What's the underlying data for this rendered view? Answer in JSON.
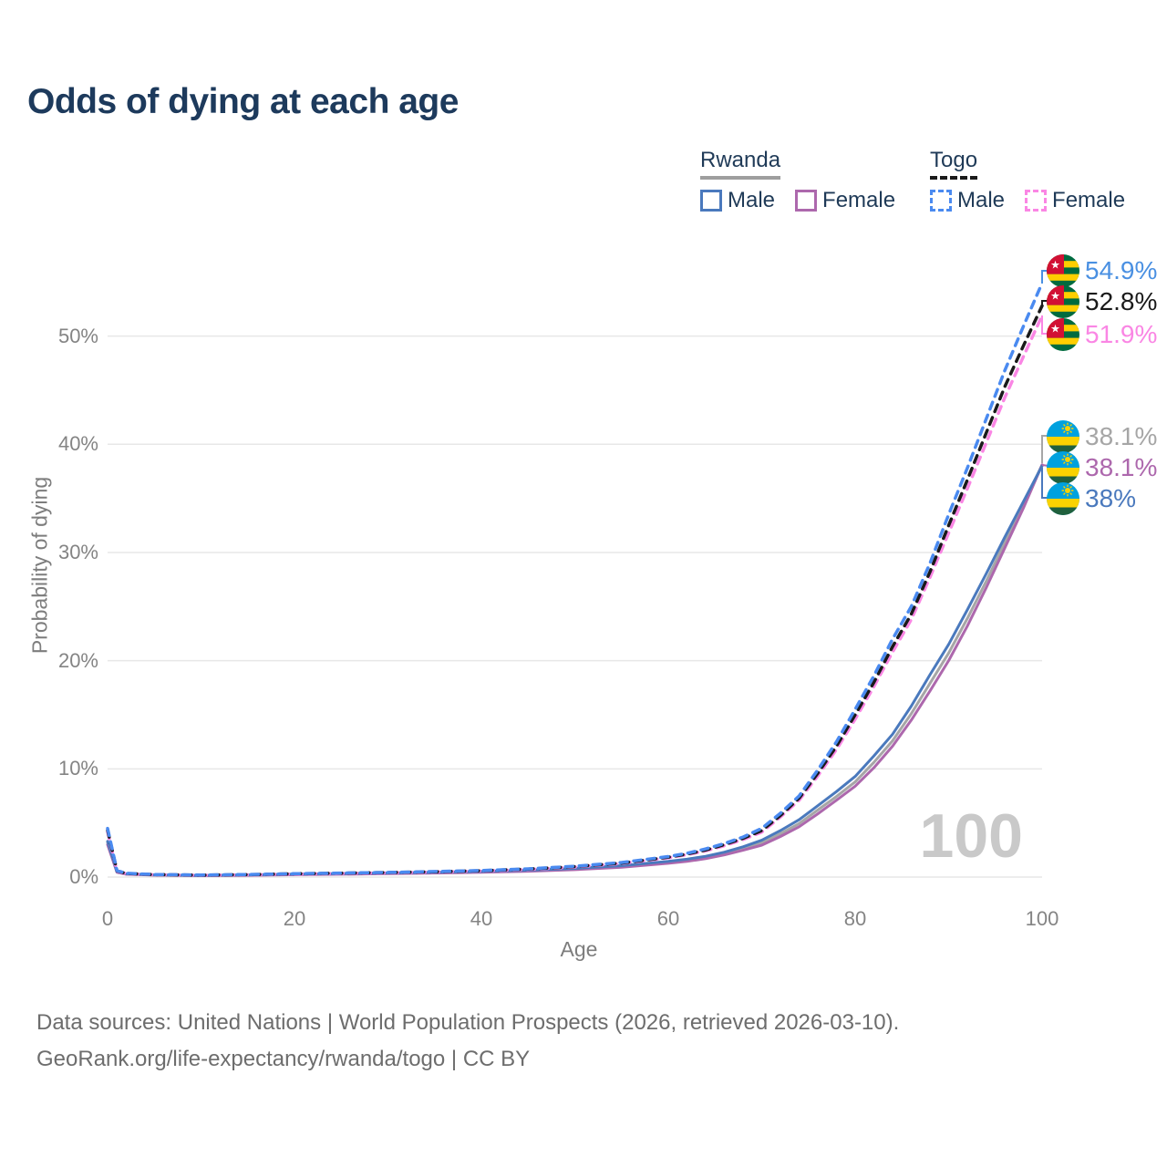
{
  "title": "Odds of dying at each age",
  "watermark": "100",
  "legend": {
    "groups": [
      {
        "name": "Rwanda",
        "underline_color": "#9e9e9e",
        "underline_style": "solid",
        "items": [
          {
            "label": "Male",
            "color": "#4a79bd",
            "style": "solid"
          },
          {
            "label": "Female",
            "color": "#ad68ad",
            "style": "solid"
          }
        ]
      },
      {
        "name": "Togo",
        "underline_color": "#1a1a1a",
        "underline_style": "dashed",
        "items": [
          {
            "label": "Male",
            "color": "#4a8af0",
            "style": "dashed"
          },
          {
            "label": "Female",
            "color": "#fa86e4",
            "style": "dashed"
          }
        ]
      }
    ]
  },
  "axes": {
    "y_label": "Probability of dying",
    "x_label": "Age",
    "y_ticks": [
      "0%",
      "10%",
      "20%",
      "30%",
      "40%",
      "50%"
    ],
    "x_ticks": [
      "0",
      "20",
      "40",
      "60",
      "80",
      "100"
    ]
  },
  "chart_data": {
    "type": "line",
    "title": "Odds of dying at each age",
    "xlabel": "Age",
    "ylabel": "Probability of dying",
    "x_range": [
      0,
      100
    ],
    "y_range_pct": [
      0,
      57
    ],
    "y_grid_pct": [
      0,
      10,
      20,
      30,
      40,
      50
    ],
    "grid": "horizontal-only",
    "ages": [
      0,
      1,
      2,
      5,
      10,
      15,
      20,
      25,
      30,
      35,
      40,
      45,
      50,
      55,
      60,
      62,
      64,
      66,
      68,
      70,
      72,
      74,
      76,
      78,
      80,
      82,
      84,
      86,
      88,
      90,
      92,
      94,
      96,
      98,
      100
    ],
    "series": [
      {
        "name": "Rwanda (both sexes)",
        "country": "Rwanda",
        "color": "#a6a6a6",
        "dash": false,
        "values": [
          3.2,
          0.47,
          0.28,
          0.19,
          0.14,
          0.18,
          0.25,
          0.3,
          0.35,
          0.41,
          0.48,
          0.58,
          0.74,
          0.98,
          1.36,
          1.55,
          1.8,
          2.17,
          2.64,
          3.15,
          4.0,
          4.95,
          6.2,
          7.45,
          8.8,
          10.6,
          12.6,
          15.1,
          17.9,
          20.7,
          23.9,
          27.3,
          30.9,
          34.4,
          38.1
        ]
      },
      {
        "name": "Rwanda Female",
        "country": "Rwanda",
        "color": "#ad68ad",
        "dash": false,
        "values": [
          3.0,
          0.44,
          0.26,
          0.18,
          0.13,
          0.16,
          0.22,
          0.26,
          0.31,
          0.37,
          0.44,
          0.54,
          0.68,
          0.9,
          1.27,
          1.45,
          1.7,
          2.05,
          2.48,
          2.95,
          3.75,
          4.65,
          5.85,
          7.1,
          8.4,
          10.1,
          12.1,
          14.5,
          17.2,
          20.0,
          23.2,
          26.7,
          30.4,
          34.1,
          38.1
        ]
      },
      {
        "name": "Rwanda Male",
        "country": "Rwanda",
        "color": "#4a79bd",
        "dash": false,
        "values": [
          3.3,
          0.5,
          0.3,
          0.2,
          0.15,
          0.2,
          0.28,
          0.33,
          0.38,
          0.44,
          0.52,
          0.63,
          0.8,
          1.05,
          1.45,
          1.65,
          1.92,
          2.3,
          2.8,
          3.4,
          4.3,
          5.3,
          6.6,
          7.9,
          9.3,
          11.2,
          13.2,
          15.8,
          18.7,
          21.5,
          24.7,
          28.0,
          31.4,
          34.7,
          38.0
        ]
      },
      {
        "name": "Togo Female",
        "country": "Togo",
        "color": "#fa86e4",
        "dash": true,
        "values": [
          4.2,
          0.54,
          0.31,
          0.22,
          0.17,
          0.21,
          0.28,
          0.34,
          0.4,
          0.47,
          0.57,
          0.71,
          0.93,
          1.26,
          1.78,
          2.07,
          2.43,
          2.9,
          3.47,
          4.15,
          5.55,
          7.1,
          9.35,
          11.8,
          14.6,
          17.6,
          20.8,
          23.8,
          27.7,
          31.8,
          35.9,
          40.1,
          44.3,
          48.1,
          51.9
        ]
      },
      {
        "name": "Togo (both sexes)",
        "country": "Togo",
        "color": "#1a1a1a",
        "dash": true,
        "values": [
          4.35,
          0.57,
          0.33,
          0.23,
          0.18,
          0.23,
          0.3,
          0.36,
          0.42,
          0.49,
          0.59,
          0.74,
          0.97,
          1.3,
          1.84,
          2.13,
          2.5,
          3.0,
          3.58,
          4.3,
          5.7,
          7.3,
          9.6,
          12.1,
          15.0,
          18.0,
          21.3,
          24.3,
          28.2,
          32.5,
          36.7,
          41.0,
          45.3,
          49.1,
          52.8
        ]
      },
      {
        "name": "Togo Male",
        "country": "Togo",
        "color": "#4a8af0",
        "dash": true,
        "values": [
          4.5,
          0.6,
          0.35,
          0.24,
          0.19,
          0.24,
          0.31,
          0.37,
          0.43,
          0.51,
          0.61,
          0.76,
          1.0,
          1.35,
          1.9,
          2.2,
          2.6,
          3.1,
          3.7,
          4.5,
          5.9,
          7.5,
          9.9,
          12.5,
          15.5,
          18.6,
          22.0,
          25.0,
          29.0,
          33.5,
          37.8,
          42.3,
          46.8,
          50.9,
          54.9
        ]
      }
    ],
    "end_labels": [
      {
        "value": "54.9%",
        "color": "#4a90e2",
        "flag": "togo",
        "series": "Togo Male"
      },
      {
        "value": "52.8%",
        "color": "#1a1a1a",
        "flag": "togo",
        "series": "Togo (both sexes)"
      },
      {
        "value": "51.9%",
        "color": "#fa86e4",
        "flag": "togo",
        "series": "Togo Female"
      },
      {
        "value": "38.1%",
        "color": "#a6a6a6",
        "flag": "rwanda",
        "series": "Rwanda (both sexes)"
      },
      {
        "value": "38.1%",
        "color": "#ad68ad",
        "flag": "rwanda",
        "series": "Rwanda Female"
      },
      {
        "value": "38%",
        "color": "#4a79bd",
        "flag": "rwanda",
        "series": "Rwanda Male"
      }
    ]
  },
  "footer": {
    "line1": "Data sources: United Nations | World Population Prospects (2026, retrieved 2026-03-10).",
    "line2": "GeoRank.org/life-expectancy/rwanda/togo | CC BY"
  }
}
